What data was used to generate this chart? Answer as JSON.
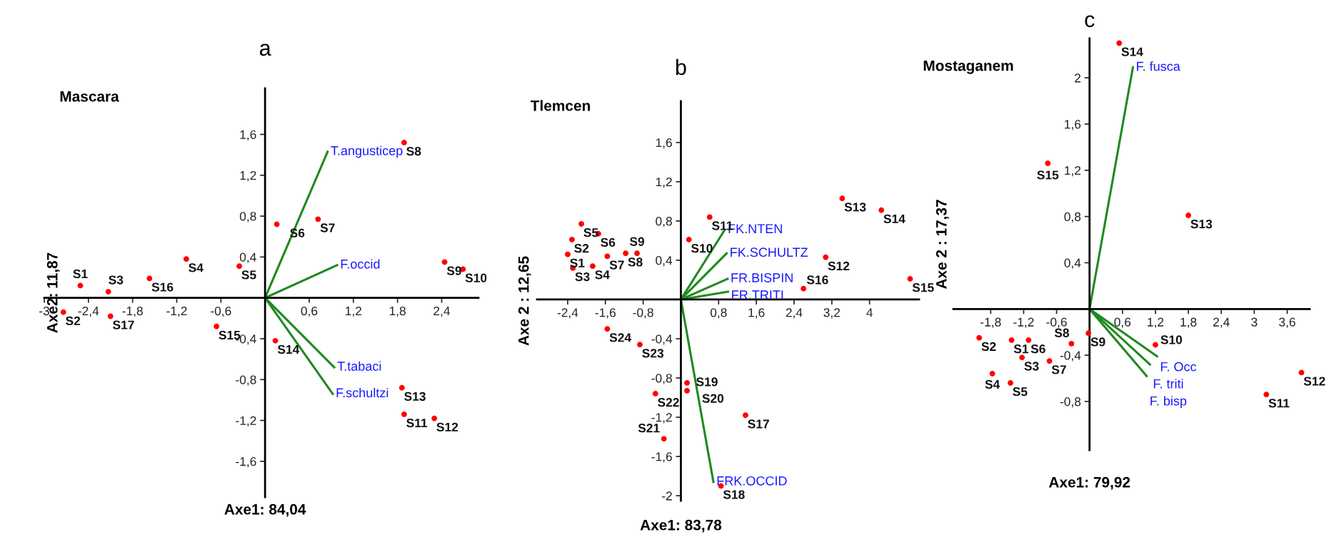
{
  "chart_data": [
    {
      "type": "scatter",
      "title": "a",
      "subtitle": "Mascara",
      "xlabel": "Axe1: 84,04",
      "ylabel": "Axe2: 11,87",
      "xlim": [
        -3,
        2.9
      ],
      "ylim": [
        -1.95,
        2.05
      ],
      "grid": false,
      "legend": false,
      "xticks": [
        {
          "value": -3,
          "label": "-3"
        },
        {
          "value": -2.4,
          "label": "-2,4"
        },
        {
          "value": -1.8,
          "label": "-1,8"
        },
        {
          "value": -1.2,
          "label": "-1,2"
        },
        {
          "value": -0.6,
          "label": "-0,6"
        },
        {
          "value": 0.6,
          "label": "0,6"
        },
        {
          "value": 1.2,
          "label": "1,2"
        },
        {
          "value": 1.8,
          "label": "1,8"
        },
        {
          "value": 2.4,
          "label": "2,4"
        }
      ],
      "yticks": [
        {
          "value": -1.6,
          "label": "-1,6"
        },
        {
          "value": -1.2,
          "label": "-1,2"
        },
        {
          "value": -0.8,
          "label": "-0,8"
        },
        {
          "value": -0.4,
          "label": "-0,4"
        },
        {
          "value": 0.4,
          "label": "0,4"
        },
        {
          "value": 0.8,
          "label": "0,8"
        },
        {
          "value": 1.2,
          "label": "1,2"
        },
        {
          "value": 1.6,
          "label": "1,6"
        }
      ],
      "series": [
        {
          "marker": "circle",
          "color": "#ff0000",
          "x": [
            -2.51,
            -2.74,
            -2.13,
            -1.07,
            -0.35,
            0.16,
            0.72,
            1.89,
            2.44,
            2.69,
            1.89,
            2.3,
            1.86,
            0.14,
            -0.66,
            -1.57,
            -2.1
          ],
          "values": [
            0.12,
            -0.14,
            0.06,
            0.38,
            0.31,
            0.72,
            0.77,
            1.52,
            0.35,
            0.28,
            -1.14,
            -1.18,
            -0.88,
            -0.42,
            -0.28,
            0.19,
            -0.18
          ]
        },
        {
          "type": "line",
          "name": "T.angusticep",
          "color": "#1f8a1f",
          "x": [
            0,
            0.85
          ],
          "values": [
            0,
            1.43
          ]
        },
        {
          "type": "line",
          "name": "F.occid",
          "color": "#1f8a1f",
          "x": [
            0,
            0.98
          ],
          "values": [
            0,
            0.32
          ]
        },
        {
          "type": "line",
          "name": "T.tabaci",
          "color": "#1f8a1f",
          "x": [
            0,
            0.94
          ],
          "values": [
            0,
            -0.68
          ]
        },
        {
          "type": "line",
          "name": "F.schultzi",
          "color": "#1f8a1f",
          "x": [
            0,
            0.92
          ],
          "values": [
            0,
            -0.94
          ]
        }
      ],
      "annotations": [
        {
          "text": "S1",
          "x": -2.51,
          "y": 0.12
        },
        {
          "text": "S2",
          "x": -2.74,
          "y": -0.14
        },
        {
          "text": "S3",
          "x": -2.13,
          "y": 0.06
        },
        {
          "text": "S4",
          "x": -1.07,
          "y": 0.38
        },
        {
          "text": "S5",
          "x": -0.35,
          "y": 0.31
        },
        {
          "text": "S6",
          "x": 0.16,
          "y": 0.72
        },
        {
          "text": "S7",
          "x": 0.72,
          "y": 0.77
        },
        {
          "text": "S8",
          "x": 1.89,
          "y": 1.52
        },
        {
          "text": "S9",
          "x": 2.44,
          "y": 0.35
        },
        {
          "text": "S10",
          "x": 2.69,
          "y": 0.28
        },
        {
          "text": "S11",
          "x": 1.89,
          "y": -1.14
        },
        {
          "text": "S12",
          "x": 2.3,
          "y": -1.18
        },
        {
          "text": "S13",
          "x": 1.86,
          "y": -0.88
        },
        {
          "text": "S14",
          "x": 0.14,
          "y": -0.42
        },
        {
          "text": "S15",
          "x": -0.66,
          "y": -0.28
        },
        {
          "text": "S16",
          "x": -1.57,
          "y": 0.19
        },
        {
          "text": "S17",
          "x": -2.1,
          "y": -0.18
        }
      ]
    },
    {
      "type": "scatter",
      "title": "b",
      "subtitle": "Tlemcen",
      "xlabel": "Axe1: 83,78",
      "ylabel": "Axe 2 : 12,65",
      "xlim": [
        -3.05,
        5.05
      ],
      "ylim": [
        -2.05,
        2.02
      ],
      "grid": false,
      "legend": false,
      "xticks": [
        {
          "value": -2.4,
          "label": "-2,4"
        },
        {
          "value": -1.6,
          "label": "-1,6"
        },
        {
          "value": -0.8,
          "label": "-0,8"
        },
        {
          "value": 0.8,
          "label": "0,8"
        },
        {
          "value": 1.6,
          "label": "1,6"
        },
        {
          "value": 2.4,
          "label": "2,4"
        },
        {
          "value": 3.2,
          "label": "3,2"
        },
        4
      ],
      "yticks": [
        -2,
        {
          "value": -1.6,
          "label": "-1,6"
        },
        {
          "value": -1.2,
          "label": "-1,2"
        },
        {
          "value": -0.8,
          "label": "-0,8"
        },
        {
          "value": -0.4,
          "label": "-0,4"
        },
        {
          "value": 0.4,
          "label": "0,4"
        },
        {
          "value": 0.8,
          "label": "0,8"
        },
        {
          "value": 1.2,
          "label": "1,2"
        },
        {
          "value": 1.6,
          "label": "1,6"
        }
      ],
      "series": [
        {
          "marker": "circle",
          "color": "#ff0000",
          "x": [
            -2.4,
            -2.31,
            -2.29,
            -1.87,
            -2.11,
            -1.75,
            -1.56,
            -1.17,
            -0.93,
            0.17,
            0.61,
            3.07,
            3.42,
            4.25,
            4.86,
            2.6,
            1.37,
            0.85,
            0.13,
            0.13,
            -0.36,
            -0.54,
            -0.87,
            -1.56
          ],
          "values": [
            0.46,
            0.61,
            0.32,
            0.34,
            0.77,
            0.67,
            0.44,
            0.47,
            0.47,
            0.61,
            0.84,
            0.43,
            1.03,
            0.91,
            0.21,
            0.11,
            -1.18,
            -1.9,
            -0.85,
            -0.93,
            -1.42,
            -0.96,
            -0.46,
            -0.3
          ]
        },
        {
          "type": "line",
          "name": "FK.NTEN",
          "color": "#1f8a1f",
          "x": [
            0,
            0.93
          ],
          "values": [
            0,
            0.71
          ]
        },
        {
          "type": "line",
          "name": "FK.SCHULTZ",
          "color": "#1f8a1f",
          "x": [
            0,
            0.97
          ],
          "values": [
            0,
            0.47
          ]
        },
        {
          "type": "line",
          "name": "FR.BISPIN",
          "color": "#1f8a1f",
          "x": [
            0,
            0.99
          ],
          "values": [
            0,
            0.21
          ]
        },
        {
          "type": "line",
          "name": "FR.TRITI",
          "color": "#1f8a1f",
          "x": [
            0,
            1.0
          ],
          "values": [
            0,
            0.08
          ]
        },
        {
          "type": "line",
          "name": "FRK.OCCID",
          "color": "#1f8a1f",
          "x": [
            0,
            0.69
          ],
          "values": [
            0,
            -1.86
          ]
        }
      ],
      "annotations": [
        {
          "text": "S1",
          "x": -2.4,
          "y": 0.46
        },
        {
          "text": "S2",
          "x": -2.31,
          "y": 0.61
        },
        {
          "text": "S3",
          "x": -2.29,
          "y": 0.32
        },
        {
          "text": "S4",
          "x": -1.87,
          "y": 0.34
        },
        {
          "text": "S5",
          "x": -2.11,
          "y": 0.77
        },
        {
          "text": "S6",
          "x": -1.75,
          "y": 0.67
        },
        {
          "text": "S7",
          "x": -1.56,
          "y": 0.44
        },
        {
          "text": "S8",
          "x": -1.17,
          "y": 0.47
        },
        {
          "text": "S9",
          "x": -0.93,
          "y": 0.47
        },
        {
          "text": "S10",
          "x": 0.17,
          "y": 0.61
        },
        {
          "text": "S11",
          "x": 0.61,
          "y": 0.84
        },
        {
          "text": "S12",
          "x": 3.07,
          "y": 0.43
        },
        {
          "text": "S13",
          "x": 3.42,
          "y": 1.03
        },
        {
          "text": "S14",
          "x": 4.25,
          "y": 0.91
        },
        {
          "text": "S15",
          "x": 4.86,
          "y": 0.21
        },
        {
          "text": "S16",
          "x": 2.6,
          "y": 0.11
        },
        {
          "text": "S17",
          "x": 1.37,
          "y": -1.18
        },
        {
          "text": "S18",
          "x": 0.85,
          "y": -1.9
        },
        {
          "text": "S19",
          "x": 0.13,
          "y": -0.85
        },
        {
          "text": "S20",
          "x": 0.13,
          "y": -0.93
        },
        {
          "text": "S21",
          "x": -0.36,
          "y": -1.42
        },
        {
          "text": "S22",
          "x": -0.54,
          "y": -0.96
        },
        {
          "text": "S23",
          "x": -0.87,
          "y": -0.46
        },
        {
          "text": "S24",
          "x": -1.56,
          "y": -0.3
        }
      ]
    },
    {
      "type": "scatter",
      "title": "c",
      "subtitle": "Mostaganem",
      "xlabel": "Axe1: 79,92",
      "ylabel": "Axe 2 : 17,37",
      "xlim": [
        -2.48,
        4.01
      ],
      "ylim": [
        -1.22,
        2.34
      ],
      "grid": false,
      "legend": false,
      "xticks": [
        {
          "value": -1.8,
          "label": "-1,8"
        },
        {
          "value": -1.2,
          "label": "-1,2"
        },
        {
          "value": -0.6,
          "label": "-0,6"
        },
        {
          "value": 0.6,
          "label": "0,6"
        },
        {
          "value": 1.2,
          "label": "1,2"
        },
        {
          "value": 1.8,
          "label": "1,8"
        },
        {
          "value": 2.4,
          "label": "2,4"
        },
        3,
        {
          "value": 3.6,
          "label": "3,6"
        }
      ],
      "yticks": [
        {
          "value": -0.8,
          "label": "-0,8"
        },
        {
          "value": -0.4,
          "label": "-0,4"
        },
        {
          "value": 0.4,
          "label": "0,4"
        },
        {
          "value": 0.8,
          "label": "0,8"
        },
        {
          "value": 1.2,
          "label": "1,2"
        },
        {
          "value": 1.6,
          "label": "1,6"
        },
        2
      ],
      "series": [
        {
          "marker": "circle",
          "color": "#ff0000",
          "x": [
            -1.42,
            -2.01,
            -1.23,
            -1.77,
            -1.44,
            -1.11,
            -0.73,
            -0.33,
            -0.02,
            1.2,
            3.22,
            3.86,
            1.8,
            0.54,
            -0.76
          ],
          "values": [
            -0.27,
            -0.25,
            -0.42,
            -0.56,
            -0.64,
            -0.27,
            -0.45,
            -0.3,
            -0.21,
            -0.31,
            -0.74,
            -0.55,
            0.81,
            2.3,
            1.26
          ]
        },
        {
          "type": "line",
          "name": "F. fusca",
          "color": "#1f8a1f",
          "x": [
            0,
            0.79
          ],
          "values": [
            0,
            2.09
          ]
        },
        {
          "type": "line",
          "name": "F. Occ",
          "color": "#1f8a1f",
          "x": [
            0,
            1.23
          ],
          "values": [
            0,
            -0.41
          ]
        },
        {
          "type": "line",
          "name": "F. triti",
          "color": "#1f8a1f",
          "x": [
            0,
            1.1
          ],
          "values": [
            0,
            -0.48
          ]
        },
        {
          "type": "line",
          "name": "F. bisp",
          "color": "#1f8a1f",
          "x": [
            0,
            1.04
          ],
          "values": [
            0,
            -0.58
          ]
        }
      ],
      "annotations": [
        {
          "text": "S1",
          "x": -1.42,
          "y": -0.27
        },
        {
          "text": "S2",
          "x": -2.01,
          "y": -0.25
        },
        {
          "text": "S3",
          "x": -1.23,
          "y": -0.42
        },
        {
          "text": "S4",
          "x": -1.77,
          "y": -0.56
        },
        {
          "text": "S5",
          "x": -1.44,
          "y": -0.64
        },
        {
          "text": "S6",
          "x": -1.11,
          "y": -0.27
        },
        {
          "text": "S7",
          "x": -0.73,
          "y": -0.45
        },
        {
          "text": "S8",
          "x": -0.33,
          "y": -0.3
        },
        {
          "text": "S9",
          "x": -0.02,
          "y": -0.21
        },
        {
          "text": "S10",
          "x": 1.2,
          "y": -0.31
        },
        {
          "text": "S11",
          "x": 3.22,
          "y": -0.74
        },
        {
          "text": "S12",
          "x": 3.86,
          "y": -0.55
        },
        {
          "text": "S13",
          "x": 1.8,
          "y": 0.81
        },
        {
          "text": "S14",
          "x": 0.54,
          "y": 2.3
        },
        {
          "text": "S15",
          "x": -0.76,
          "y": 1.26
        }
      ]
    }
  ]
}
